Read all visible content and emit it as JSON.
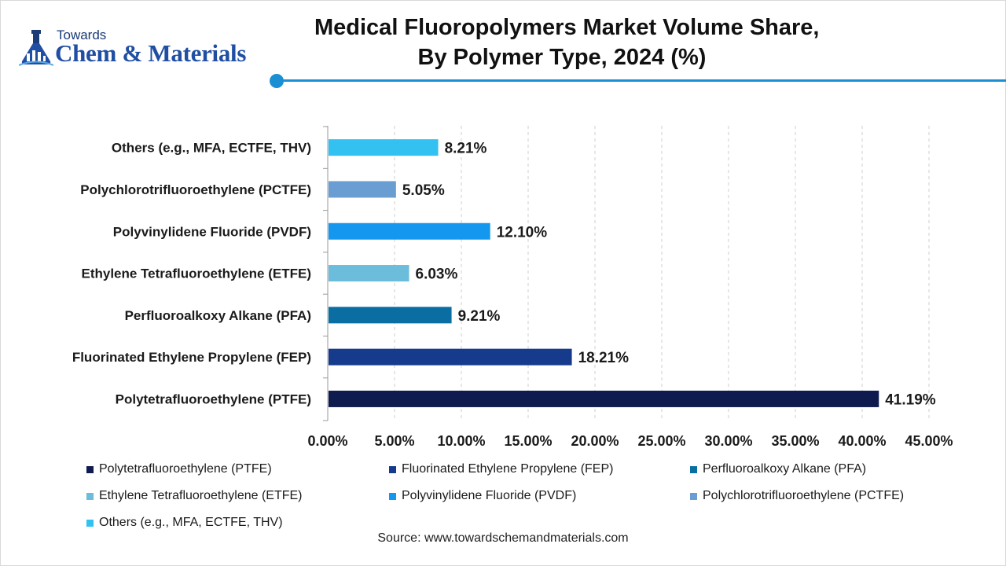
{
  "brand": {
    "top_text": "Towards",
    "main_text": "Chem & Materials",
    "icon": "flask-logo-icon",
    "color": "#1f4ea3"
  },
  "header": {
    "title_line1": "Medical Fluoropolymers Market Volume Share,",
    "title_line2": "By Polymer Type, 2024 (%)",
    "accent_color": "#1b8fd3"
  },
  "chart_data": {
    "type": "bar",
    "orientation": "horizontal",
    "categories": [
      "Polytetrafluoroethylene (PTFE)",
      "Fluorinated Ethylene Propylene (FEP)",
      "Perfluoroalkoxy Alkane (PFA)",
      "Ethylene Tetrafluoroethylene (ETFE)",
      "Polyvinylidene Fluoride (PVDF)",
      "Polychlorotrifluoroethylene (PCTFE)",
      "Others (e.g., MFA, ECTFE, THV)"
    ],
    "values": [
      41.19,
      18.21,
      9.21,
      6.03,
      12.1,
      5.05,
      8.21
    ],
    "value_labels": [
      "41.19%",
      "18.21%",
      "9.21%",
      "6.03%",
      "12.10%",
      "5.05%",
      "8.21%"
    ],
    "colors": [
      "#0f1a4f",
      "#163a8c",
      "#0b6ea3",
      "#6cbcdb",
      "#1497ee",
      "#6a9ed2",
      "#33c1f2"
    ],
    "xlim": [
      0,
      45
    ],
    "xticks": [
      "0.00%",
      "5.00%",
      "10.00%",
      "15.00%",
      "20.00%",
      "25.00%",
      "30.00%",
      "35.00%",
      "40.00%",
      "45.00%"
    ],
    "grid": "vertical-dashed",
    "legend_position": "bottom"
  },
  "source": "Source: www.towardschemandmaterials.com"
}
